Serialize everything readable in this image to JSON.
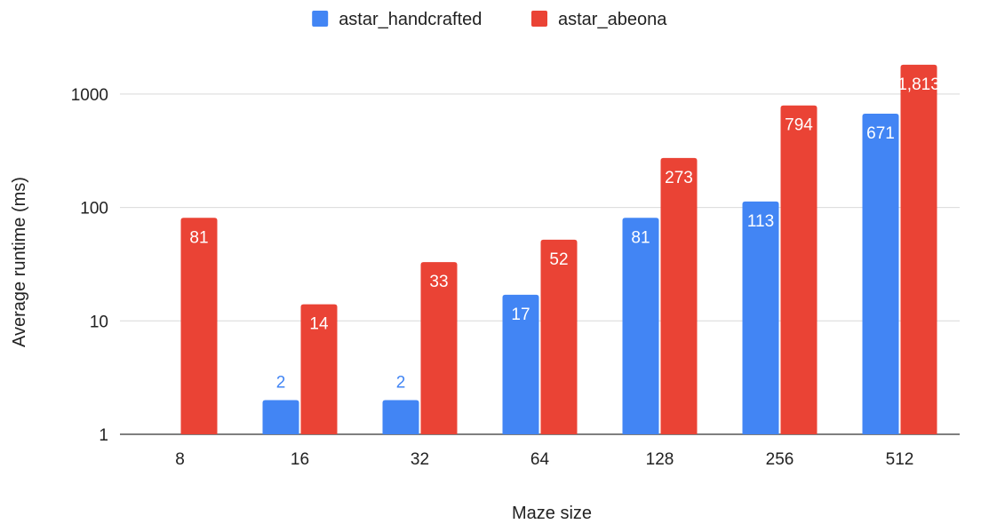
{
  "chart_data": {
    "type": "bar",
    "categories": [
      "8",
      "16",
      "32",
      "64",
      "128",
      "256",
      "512"
    ],
    "series": [
      {
        "name": "astar_handcrafted",
        "color": "#4285F4",
        "values": [
          null,
          2,
          2,
          17,
          81,
          113,
          671
        ],
        "labels": [
          "",
          "2",
          "2",
          "17",
          "81",
          "113",
          "671"
        ]
      },
      {
        "name": "astar_abeona",
        "color": "#EA4335",
        "values": [
          81,
          14,
          33,
          52,
          273,
          794,
          1813
        ],
        "labels": [
          "81",
          "14",
          "33",
          "52",
          "273",
          "794",
          "1,813"
        ]
      }
    ],
    "xlabel": "Maze size",
    "ylabel": "Average runtime (ms)",
    "yscale": "log",
    "ylim": [
      1,
      2000
    ],
    "yticks": [
      1,
      10,
      100,
      1000
    ],
    "ytick_labels": [
      "1",
      "10",
      "100",
      "1000"
    ],
    "grid": true,
    "legend_position": "top"
  }
}
